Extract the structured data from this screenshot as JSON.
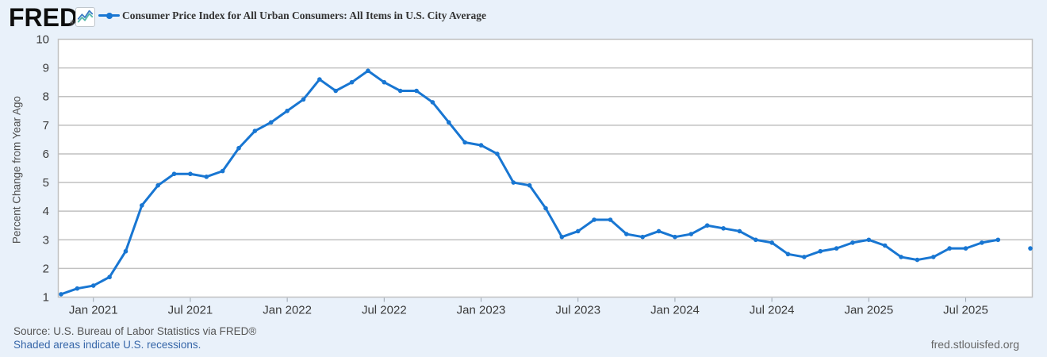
{
  "header": {
    "logo_text": "FRED",
    "logo_reg": "®",
    "legend_label": "Consumer Price Index for All Urban Consumers: All Items in U.S. City Average"
  },
  "footer": {
    "source": "Source: U.S. Bureau of Labor Statistics via FRED®",
    "recession_note": "Shaded areas indicate U.S. recessions.",
    "site_url": "fred.stlouisfed.org"
  },
  "colors": {
    "background": "#e9f1fa",
    "plot_background": "#ffffff",
    "grid": "#c1c1c1",
    "line": "#1876d2",
    "link": "#3666a8",
    "logo_icon_blue": "#3d7dc4",
    "logo_icon_teal": "#55b7ab"
  },
  "chart_data": {
    "type": "line",
    "title": "Consumer Price Index for All Urban Consumers: All Items in U.S. City Average",
    "series_name": "Consumer Price Index for All Urban Consumers: All Items in U.S. City Average",
    "xlabel": "",
    "ylabel": "Percent Change from Year Ago",
    "ylim": [
      1,
      10
    ],
    "grid": true,
    "legend_position": "top-left",
    "y_ticks": [
      1,
      2,
      3,
      4,
      5,
      6,
      7,
      8,
      9,
      10
    ],
    "x_tick_labels": [
      "Jan 2021",
      "Jul 2021",
      "Jan 2022",
      "Jul 2022",
      "Jan 2023",
      "Jul 2023",
      "Jan 2024",
      "Jul 2024",
      "Jan 2025",
      "Jul 2025"
    ],
    "x_tick_month_index": [
      2,
      8,
      14,
      20,
      26,
      32,
      38,
      44,
      50,
      56
    ],
    "months": [
      "2020-11",
      "2020-12",
      "2021-01",
      "2021-02",
      "2021-03",
      "2021-04",
      "2021-05",
      "2021-06",
      "2021-07",
      "2021-08",
      "2021-09",
      "2021-10",
      "2021-11",
      "2021-12",
      "2022-01",
      "2022-02",
      "2022-03",
      "2022-04",
      "2022-05",
      "2022-06",
      "2022-07",
      "2022-08",
      "2022-09",
      "2022-10",
      "2022-11",
      "2022-12",
      "2023-01",
      "2023-02",
      "2023-03",
      "2023-04",
      "2023-05",
      "2023-06",
      "2023-07",
      "2023-08",
      "2023-09",
      "2023-10",
      "2023-11",
      "2023-12",
      "2024-01",
      "2024-02",
      "2024-03",
      "2024-04",
      "2024-05",
      "2024-06",
      "2024-07",
      "2024-08",
      "2024-09",
      "2024-10",
      "2024-11",
      "2024-12",
      "2025-01",
      "2025-02",
      "2025-03",
      "2025-04",
      "2025-05",
      "2025-06",
      "2025-07",
      "2025-08",
      "2025-09",
      "2025-10",
      "2025-11"
    ],
    "values": [
      1.1,
      1.3,
      1.4,
      1.7,
      2.6,
      4.2,
      4.9,
      5.3,
      5.3,
      5.2,
      5.4,
      6.2,
      6.8,
      7.1,
      7.5,
      7.9,
      8.6,
      8.2,
      8.5,
      8.9,
      8.5,
      8.2,
      8.2,
      7.8,
      7.1,
      6.4,
      6.3,
      6.0,
      5.0,
      4.9,
      4.1,
      3.1,
      3.3,
      3.7,
      3.7,
      3.2,
      3.1,
      3.3,
      3.1,
      3.2,
      3.5,
      3.4,
      3.3,
      3.0,
      2.9,
      2.5,
      2.4,
      2.6,
      2.7,
      2.9,
      3.0,
      2.8,
      2.4,
      2.3,
      2.4,
      2.7,
      2.7,
      2.9,
      3.0,
      null,
      2.7
    ],
    "note": "gap at 2025-10 (no observation); 2025-11 plotted as isolated point"
  }
}
